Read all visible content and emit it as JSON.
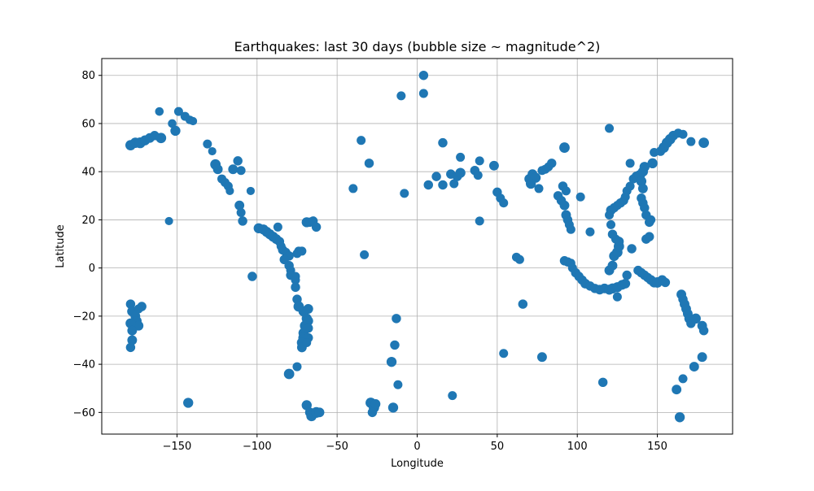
{
  "chart_data": {
    "type": "scatter",
    "title": "Earthquakes: last 30 days (bubble size ~ magnitude^2)",
    "xlabel": "Longitude",
    "ylabel": "Latitude",
    "xlim": [
      -197,
      197
    ],
    "ylim": [
      -69,
      87
    ],
    "xticks": [
      -150,
      -100,
      -50,
      0,
      50,
      100,
      150
    ],
    "yticks": [
      -60,
      -40,
      -20,
      0,
      20,
      40,
      60,
      80
    ],
    "grid": true,
    "legend": "none",
    "marker_color": "#1f77b4",
    "points": [
      [
        -179,
        51,
        5.8
      ],
      [
        -176,
        52,
        5.8
      ],
      [
        -173,
        52,
        6
      ],
      [
        -170,
        53,
        5.6
      ],
      [
        -167,
        54,
        5.4
      ],
      [
        -164,
        55,
        5.2
      ],
      [
        -160,
        54,
        5.8
      ],
      [
        -161,
        65,
        4.8
      ],
      [
        -153,
        60,
        4.8
      ],
      [
        -151,
        57,
        5.6
      ],
      [
        -149,
        65,
        5
      ],
      [
        -145,
        63,
        5
      ],
      [
        -142,
        61.5,
        4.8
      ],
      [
        -140,
        61,
        4.6
      ],
      [
        -131,
        51.5,
        5
      ],
      [
        -128,
        48.5,
        4.6
      ],
      [
        -126,
        43,
        5.8
      ],
      [
        -124.5,
        41,
        5.4
      ],
      [
        -122,
        37,
        5
      ],
      [
        -120,
        35.5,
        5
      ],
      [
        -118,
        34,
        5
      ],
      [
        -117,
        32,
        4.6
      ],
      [
        -115,
        41,
        5.4
      ],
      [
        -112,
        44.5,
        5.2
      ],
      [
        -110,
        40.5,
        5
      ],
      [
        -111,
        26,
        5.4
      ],
      [
        -110,
        23,
        5
      ],
      [
        -109,
        19.5,
        5.2
      ],
      [
        -104,
        32,
        4.6
      ],
      [
        -103,
        -3.5,
        5.2
      ],
      [
        -99,
        16.5,
        5.6
      ],
      [
        -96,
        16,
        5.6
      ],
      [
        -94,
        15,
        5.6
      ],
      [
        -92,
        14,
        5.6
      ],
      [
        -90,
        13,
        5.6
      ],
      [
        -88,
        12,
        5.4
      ],
      [
        -86,
        11,
        5.2
      ],
      [
        -87,
        17,
        5
      ],
      [
        -85,
        9,
        5
      ],
      [
        -84,
        7.5,
        5.2
      ],
      [
        -82,
        6.5,
        5
      ],
      [
        -80,
        5,
        5.2
      ],
      [
        -83,
        3.5,
        5.2
      ],
      [
        -80,
        1,
        5.2
      ],
      [
        -79,
        -1,
        5
      ],
      [
        -79,
        -3,
        5.2
      ],
      [
        -76,
        -3.5,
        5
      ],
      [
        -76,
        -5,
        5
      ],
      [
        -76,
        -8,
        5.2
      ],
      [
        -74,
        7,
        5
      ],
      [
        -75,
        6,
        5
      ],
      [
        -72,
        7,
        5
      ],
      [
        -75,
        -13,
        5.2
      ],
      [
        -74,
        -16,
        5.8
      ],
      [
        -71,
        -18,
        5.6
      ],
      [
        -69,
        -21,
        5.6
      ],
      [
        -70,
        -24,
        5.8
      ],
      [
        -71,
        -27,
        5.6
      ],
      [
        -71,
        -29,
        5.8
      ],
      [
        -72,
        -31,
        5.6
      ],
      [
        -72,
        -33,
        5.4
      ],
      [
        -68,
        -17,
        5.4
      ],
      [
        -68,
        -22,
        5.4
      ],
      [
        -68,
        -25,
        5.2
      ],
      [
        -68,
        -29,
        5.2
      ],
      [
        -69,
        -31,
        5
      ],
      [
        -75,
        -41,
        5
      ],
      [
        -80,
        -44,
        5.8
      ],
      [
        -69,
        -57,
        5.6
      ],
      [
        -67,
        -60,
        5.4
      ],
      [
        -66,
        -61.5,
        5.8
      ],
      [
        -63,
        -60,
        6
      ],
      [
        -61,
        -60,
        5.4
      ],
      [
        -69,
        19,
        5.6
      ],
      [
        -67,
        19,
        5.2
      ],
      [
        -65,
        19.5,
        5.2
      ],
      [
        -63,
        17,
        5.2
      ],
      [
        -40,
        33,
        5
      ],
      [
        -35,
        53,
        5
      ],
      [
        -30,
        43.5,
        5.2
      ],
      [
        -33,
        5.5,
        5
      ],
      [
        -29,
        -56,
        5.8
      ],
      [
        -27,
        -58,
        5.8
      ],
      [
        -26,
        -56.5,
        5.4
      ],
      [
        -28,
        -60,
        5.2
      ],
      [
        -16,
        -39,
        5.6
      ],
      [
        -14,
        -32,
        5.2
      ],
      [
        -13,
        -21,
        5.2
      ],
      [
        -15,
        -58,
        5.6
      ],
      [
        -12,
        -48.5,
        5
      ],
      [
        -10,
        71.5,
        5
      ],
      [
        -8,
        31,
        5
      ],
      [
        4,
        80,
        5.2
      ],
      [
        4,
        72.5,
        5
      ],
      [
        7,
        34.5,
        5.2
      ],
      [
        12,
        38,
        5.2
      ],
      [
        16,
        52,
        5.2
      ],
      [
        16,
        34.5,
        5.2
      ],
      [
        21,
        39,
        5.2
      ],
      [
        23,
        35,
        5
      ],
      [
        25,
        38,
        5.2
      ],
      [
        27,
        39.5,
        5.6
      ],
      [
        27,
        46,
        5
      ],
      [
        22,
        -53,
        5
      ],
      [
        36,
        40.5,
        5.2
      ],
      [
        38,
        38.5,
        5
      ],
      [
        39,
        44.5,
        5
      ],
      [
        39,
        19.5,
        5
      ],
      [
        48,
        42.5,
        5.4
      ],
      [
        50,
        31.5,
        5.2
      ],
      [
        52,
        29,
        5
      ],
      [
        54,
        27,
        5
      ],
      [
        54,
        -35.5,
        5
      ],
      [
        62,
        4.5,
        5
      ],
      [
        64,
        3.5,
        5
      ],
      [
        66,
        -15,
        5.2
      ],
      [
        78,
        -37,
        5.4
      ],
      [
        70,
        37,
        5.4
      ],
      [
        72,
        39,
        5.4
      ],
      [
        74,
        37.5,
        5.6
      ],
      [
        71,
        35,
        5.6
      ],
      [
        76,
        33,
        5
      ],
      [
        78,
        40.5,
        5
      ],
      [
        80,
        41,
        5
      ],
      [
        82,
        42,
        5
      ],
      [
        84,
        43.5,
        5.2
      ],
      [
        88,
        30,
        5.2
      ],
      [
        90,
        28,
        5.2
      ],
      [
        91,
        34,
        5.2
      ],
      [
        92,
        50,
        5.8
      ],
      [
        93,
        32,
        5
      ],
      [
        92,
        26,
        5.4
      ],
      [
        93,
        22,
        5.4
      ],
      [
        94,
        20,
        5.2
      ],
      [
        95,
        18,
        5
      ],
      [
        96,
        16,
        5
      ],
      [
        92,
        3,
        5.2
      ],
      [
        94,
        2.5,
        5.2
      ],
      [
        96,
        2,
        5
      ],
      [
        97,
        0,
        5
      ],
      [
        99,
        -2,
        5.2
      ],
      [
        101,
        -3.5,
        5.2
      ],
      [
        103,
        -5,
        5.2
      ],
      [
        105,
        -6.5,
        5.4
      ],
      [
        108,
        -7.5,
        5.2
      ],
      [
        111,
        -8.5,
        5.2
      ],
      [
        114,
        -9,
        5.4
      ],
      [
        117,
        -8.5,
        5.4
      ],
      [
        120,
        -9,
        5.6
      ],
      [
        122,
        -8.5,
        5.6
      ],
      [
        125,
        -8,
        5.6
      ],
      [
        128,
        -7,
        5.4
      ],
      [
        130,
        -6.5,
        5.4
      ],
      [
        131,
        -3,
        5.2
      ],
      [
        125,
        -12,
        5
      ],
      [
        116,
        -47.5,
        5.2
      ],
      [
        108,
        15,
        5
      ],
      [
        102,
        29.5,
        5
      ],
      [
        120,
        58,
        5
      ],
      [
        120,
        -1,
        5.4
      ],
      [
        122,
        1,
        5.4
      ],
      [
        123,
        5,
        5.6
      ],
      [
        125,
        6.5,
        5.8
      ],
      [
        126,
        9,
        5.8
      ],
      [
        126,
        11,
        5.4
      ],
      [
        124,
        12,
        5
      ],
      [
        122,
        14,
        5.2
      ],
      [
        121,
        18,
        5
      ],
      [
        120,
        22,
        5
      ],
      [
        121,
        24,
        5.4
      ],
      [
        123,
        25,
        5.2
      ],
      [
        125,
        26,
        5
      ],
      [
        127,
        27,
        5.2
      ],
      [
        129,
        28,
        5
      ],
      [
        130,
        29.5,
        5
      ],
      [
        131,
        32,
        5
      ],
      [
        133,
        34,
        5
      ],
      [
        135,
        37,
        5
      ],
      [
        133,
        43.5,
        5
      ],
      [
        137,
        38,
        5.6
      ],
      [
        139,
        38.5,
        5.8
      ],
      [
        141,
        40,
        5.6
      ],
      [
        142,
        42,
        5.6
      ],
      [
        140,
        36,
        5.6
      ],
      [
        141,
        33,
        5.4
      ],
      [
        140,
        29,
        5.2
      ],
      [
        141,
        27,
        5.2
      ],
      [
        142,
        25,
        5.2
      ],
      [
        143,
        22,
        5.2
      ],
      [
        145,
        19,
        5.2
      ],
      [
        146,
        20,
        5
      ],
      [
        143,
        12,
        5.2
      ],
      [
        145,
        13,
        5.2
      ],
      [
        134,
        8,
        5.2
      ],
      [
        138,
        -1,
        5.2
      ],
      [
        140,
        -2,
        5.2
      ],
      [
        142,
        -3,
        5.2
      ],
      [
        144,
        -4,
        5.2
      ],
      [
        146,
        -5,
        5.4
      ],
      [
        148,
        -6,
        5.6
      ],
      [
        150,
        -6,
        5.8
      ],
      [
        153,
        -5,
        5.4
      ],
      [
        155,
        -6,
        5.2
      ],
      [
        147,
        43.5,
        5.6
      ],
      [
        148,
        48,
        5
      ],
      [
        152,
        48.5,
        5.2
      ],
      [
        154,
        50,
        5.8
      ],
      [
        156,
        52,
        5.8
      ],
      [
        158,
        53.5,
        5.8
      ],
      [
        160,
        55,
        5.4
      ],
      [
        163,
        56,
        5
      ],
      [
        166,
        55.5,
        5
      ],
      [
        171,
        52.5,
        5
      ],
      [
        179,
        52,
        5.8
      ],
      [
        165,
        -11,
        5.4
      ],
      [
        166,
        -13,
        5.2
      ],
      [
        167,
        -15,
        5.4
      ],
      [
        168,
        -17,
        5.4
      ],
      [
        169,
        -19,
        5.4
      ],
      [
        170,
        -21,
        5.6
      ],
      [
        171,
        -23,
        5.2
      ],
      [
        174,
        -21,
        5.6
      ],
      [
        178,
        -24,
        5.4
      ],
      [
        179,
        -26,
        5.2
      ],
      [
        178,
        -37,
        5.4
      ],
      [
        173,
        -41,
        5.4
      ],
      [
        162,
        -50.5,
        5.4
      ],
      [
        164,
        -62,
        5.6
      ],
      [
        166,
        -46,
        5
      ],
      [
        -179,
        -15,
        5.2
      ],
      [
        -178,
        -18,
        5.6
      ],
      [
        -176,
        -20,
        5.4
      ],
      [
        -175,
        -22,
        5.2
      ],
      [
        -174,
        -24,
        5.4
      ],
      [
        -179,
        -23,
        5.6
      ],
      [
        -178,
        -26,
        5.4
      ],
      [
        -178,
        -30,
        5.4
      ],
      [
        -179,
        -33,
        5.2
      ],
      [
        -172,
        -16,
        5.2
      ],
      [
        -174,
        -17,
        5
      ],
      [
        -155,
        19.5,
        4.6
      ],
      [
        -143,
        -56,
        5.6
      ]
    ]
  }
}
